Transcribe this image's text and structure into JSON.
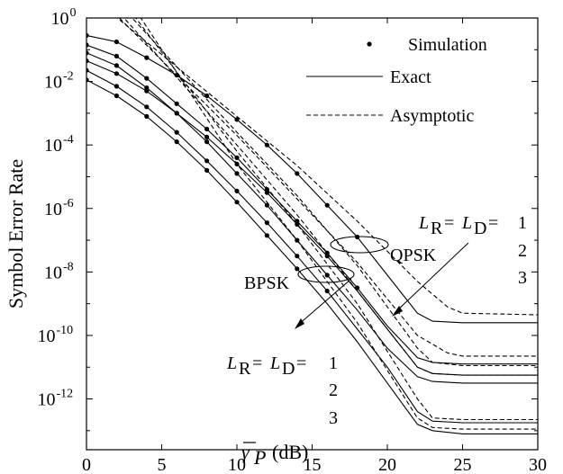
{
  "chart_data": {
    "type": "line",
    "title": "",
    "xlabel": "γ̄P (dB)",
    "xlabel_parts": {
      "symbol": "γ",
      "subscript": "P",
      "unit": "(dB)"
    },
    "ylabel": "Symbol Error Rate",
    "xlim": [
      0,
      30
    ],
    "ylim_log10": [
      -13.6,
      0
    ],
    "y_scale": "log",
    "grid": false,
    "x_ticks": [
      0,
      5,
      10,
      15,
      20,
      25,
      30
    ],
    "x_tick_labels": [
      "0",
      "5",
      "10",
      "15",
      "20",
      "25",
      "30"
    ],
    "y_ticks_exp": [
      0,
      -2,
      -4,
      -6,
      -8,
      -10,
      -12
    ],
    "y_tick_base": "10",
    "y_tick_exps": [
      "0",
      "-2",
      "-4",
      "-6",
      "-8",
      "-10",
      "-12"
    ],
    "legend": {
      "position": "top-right",
      "entries": [
        {
          "label": "Simulation",
          "style": "marker"
        },
        {
          "label": "Exact",
          "style": "solid"
        },
        {
          "label": "Asymptotic",
          "style": "dashed"
        }
      ]
    },
    "annotations": {
      "qpsk": "QPSK",
      "bpsk": "BPSK",
      "lr_ld_main": "= ",
      "lr_ld_eq": "=",
      "L": "L",
      "sub_R": "R",
      "sub_D": "D",
      "orders": [
        "1",
        "2",
        "3"
      ]
    },
    "series": [
      {
        "group": "QPSK",
        "L": 1,
        "exact": [
          [
            0,
            -0.55
          ],
          [
            2,
            -0.75
          ],
          [
            4,
            -1.25
          ],
          [
            6,
            -1.8
          ],
          [
            8,
            -2.45
          ],
          [
            10,
            -3.2
          ],
          [
            12,
            -4.0
          ],
          [
            14,
            -4.9
          ],
          [
            16,
            -5.9
          ],
          [
            18,
            -6.9
          ],
          [
            20,
            -8.1
          ],
          [
            22,
            -9.3
          ],
          [
            23,
            -9.55
          ],
          [
            25,
            -9.6
          ],
          [
            30,
            -9.6
          ]
        ],
        "asym": [
          [
            0,
            0.8
          ],
          [
            10,
            -3.1
          ],
          [
            14,
            -4.65
          ],
          [
            18,
            -6.4
          ],
          [
            22,
            -8.3
          ],
          [
            24,
            -9.1
          ],
          [
            25,
            -9.3
          ],
          [
            30,
            -9.35
          ]
        ],
        "sim": [
          [
            0,
            -0.55
          ],
          [
            2,
            -0.75
          ],
          [
            4,
            -1.25
          ],
          [
            6,
            -1.8
          ],
          [
            8,
            -2.45
          ],
          [
            10,
            -3.2
          ],
          [
            12,
            -4.0
          ],
          [
            14,
            -4.9
          ],
          [
            16,
            -5.9
          ],
          [
            18,
            -6.9
          ]
        ]
      },
      {
        "group": "QPSK",
        "L": 2,
        "exact": [
          [
            0,
            -0.85
          ],
          [
            2,
            -1.2
          ],
          [
            4,
            -1.9
          ],
          [
            6,
            -2.7
          ],
          [
            8,
            -3.5
          ],
          [
            10,
            -4.4
          ],
          [
            12,
            -5.4
          ],
          [
            14,
            -6.4
          ],
          [
            16,
            -7.4
          ],
          [
            18,
            -8.5
          ],
          [
            20,
            -9.7
          ],
          [
            22,
            -10.7
          ],
          [
            23,
            -10.85
          ],
          [
            25,
            -10.9
          ],
          [
            30,
            -10.9
          ]
        ],
        "asym": [
          [
            0.5,
            0.8
          ],
          [
            10,
            -3.7
          ],
          [
            14,
            -5.7
          ],
          [
            18,
            -7.7
          ],
          [
            22,
            -10.0
          ],
          [
            24,
            -10.55
          ],
          [
            25,
            -10.65
          ],
          [
            30,
            -10.65
          ]
        ],
        "sim": [
          [
            0,
            -0.85
          ],
          [
            2,
            -1.2
          ],
          [
            4,
            -1.9
          ],
          [
            6,
            -2.7
          ],
          [
            8,
            -3.5
          ],
          [
            10,
            -4.4
          ],
          [
            12,
            -5.4
          ],
          [
            14,
            -6.4
          ],
          [
            16,
            -7.4
          ],
          [
            18,
            -8.5
          ]
        ]
      },
      {
        "group": "QPSK",
        "L": 3,
        "exact": [
          [
            0,
            -1.1
          ],
          [
            2,
            -1.5
          ],
          [
            4,
            -2.2
          ],
          [
            6,
            -3.0
          ],
          [
            8,
            -3.9
          ],
          [
            10,
            -4.9
          ],
          [
            12,
            -5.9
          ],
          [
            14,
            -7.0
          ],
          [
            16,
            -8.1
          ],
          [
            18,
            -9.2
          ],
          [
            20,
            -10.4
          ],
          [
            22,
            -11.3
          ],
          [
            23,
            -11.45
          ],
          [
            25,
            -11.5
          ],
          [
            30,
            -11.5
          ]
        ],
        "asym": [
          [
            1,
            0.8
          ],
          [
            10,
            -4.0
          ],
          [
            14,
            -6.2
          ],
          [
            18,
            -8.6
          ],
          [
            22,
            -11.0
          ],
          [
            23,
            -11.2
          ],
          [
            25,
            -11.25
          ],
          [
            30,
            -11.25
          ]
        ],
        "sim": [
          [
            0,
            -1.1
          ],
          [
            2,
            -1.5
          ],
          [
            4,
            -2.2
          ],
          [
            6,
            -3.0
          ],
          [
            8,
            -3.9
          ],
          [
            10,
            -4.9
          ],
          [
            12,
            -5.9
          ],
          [
            14,
            -7.0
          ],
          [
            16,
            -8.1
          ]
        ]
      },
      {
        "group": "BPSK",
        "L": 1,
        "exact": [
          [
            0,
            -1.35
          ],
          [
            2,
            -1.75
          ],
          [
            4,
            -2.3
          ],
          [
            6,
            -3.0
          ],
          [
            8,
            -3.75
          ],
          [
            10,
            -4.6
          ],
          [
            12,
            -5.5
          ],
          [
            14,
            -6.5
          ],
          [
            16,
            -7.5
          ],
          [
            18,
            -8.6
          ],
          [
            20,
            -9.8
          ],
          [
            22,
            -11.0
          ],
          [
            23,
            -11.2
          ],
          [
            25,
            -11.25
          ],
          [
            30,
            -11.25
          ]
        ],
        "asym": [
          [
            1.5,
            0.8
          ],
          [
            10,
            -3.6
          ],
          [
            14,
            -5.6
          ],
          [
            18,
            -7.8
          ],
          [
            22,
            -10.4
          ],
          [
            23,
            -10.85
          ],
          [
            25,
            -10.95
          ],
          [
            30,
            -10.95
          ]
        ],
        "sim": [
          [
            0,
            -1.35
          ],
          [
            2,
            -1.75
          ],
          [
            4,
            -2.3
          ],
          [
            6,
            -3.0
          ],
          [
            8,
            -3.75
          ],
          [
            10,
            -4.6
          ],
          [
            12,
            -5.5
          ],
          [
            14,
            -6.5
          ],
          [
            16,
            -7.5
          ]
        ]
      },
      {
        "group": "BPSK",
        "L": 2,
        "exact": [
          [
            0,
            -1.65
          ],
          [
            2,
            -2.15
          ],
          [
            4,
            -2.8
          ],
          [
            6,
            -3.6
          ],
          [
            8,
            -4.5
          ],
          [
            10,
            -5.45
          ],
          [
            12,
            -6.45
          ],
          [
            14,
            -7.5
          ],
          [
            16,
            -8.6
          ],
          [
            18,
            -9.8
          ],
          [
            20,
            -11.0
          ],
          [
            22,
            -12.4
          ],
          [
            23,
            -12.7
          ],
          [
            25,
            -12.75
          ],
          [
            30,
            -12.75
          ]
        ],
        "asym": [
          [
            2,
            0.8
          ],
          [
            10,
            -4.2
          ],
          [
            14,
            -6.5
          ],
          [
            18,
            -9.0
          ],
          [
            22,
            -12.0
          ],
          [
            23,
            -12.6
          ],
          [
            25,
            -12.65
          ],
          [
            30,
            -12.65
          ]
        ],
        "sim": [
          [
            0,
            -1.65
          ],
          [
            2,
            -2.15
          ],
          [
            4,
            -2.8
          ],
          [
            6,
            -3.6
          ],
          [
            8,
            -4.5
          ],
          [
            10,
            -5.45
          ],
          [
            12,
            -6.45
          ],
          [
            14,
            -7.5
          ],
          [
            16,
            -8.6
          ]
        ]
      },
      {
        "group": "BPSK",
        "L": 3,
        "exact": [
          [
            0,
            -1.95
          ],
          [
            2,
            -2.45
          ],
          [
            4,
            -3.1
          ],
          [
            6,
            -3.9
          ],
          [
            8,
            -4.8
          ],
          [
            10,
            -5.8
          ],
          [
            12,
            -6.85
          ],
          [
            14,
            -7.9
          ],
          [
            16,
            -9.0
          ],
          [
            18,
            -10.2
          ],
          [
            20,
            -11.5
          ],
          [
            22,
            -12.8
          ],
          [
            23,
            -13.0
          ],
          [
            25,
            -13.1
          ],
          [
            30,
            -13.1
          ]
        ],
        "asym": [
          [
            2.5,
            0.8
          ],
          [
            10,
            -4.6
          ],
          [
            14,
            -7.0
          ],
          [
            18,
            -9.6
          ],
          [
            22,
            -12.6
          ],
          [
            23,
            -12.9
          ],
          [
            25,
            -12.95
          ],
          [
            30,
            -12.95
          ]
        ],
        "sim": [
          [
            0,
            -1.95
          ],
          [
            2,
            -2.45
          ],
          [
            4,
            -3.1
          ],
          [
            6,
            -3.9
          ],
          [
            8,
            -4.8
          ],
          [
            10,
            -5.8
          ],
          [
            12,
            -6.85
          ],
          [
            14,
            -7.9
          ]
        ]
      }
    ]
  }
}
